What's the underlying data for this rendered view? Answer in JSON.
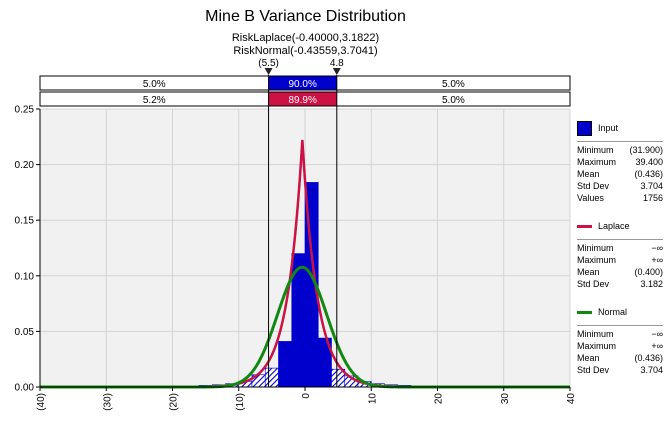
{
  "chart_data": {
    "type": "histogram",
    "title": "Mine B Variance Distribution",
    "subtitles": [
      "RiskLaplace(-0.40000,3.1822)",
      "RiskNormal(-0.43559,3.7041)"
    ],
    "xlim": [
      -40,
      40
    ],
    "ylim": [
      0,
      0.25
    ],
    "x_ticks": [
      -40,
      -30,
      -20,
      -10,
      0,
      10,
      20,
      30,
      40
    ],
    "x_tick_labels": [
      "(40)",
      "(30)",
      "(20)",
      "(10)",
      "0",
      "10",
      "20",
      "30",
      "40"
    ],
    "y_ticks": [
      0,
      0.05,
      0.1,
      0.15,
      0.2,
      0.25
    ],
    "y_tick_labels": [
      "0.00",
      "0.05",
      "0.10",
      "0.15",
      "0.20",
      "0.25"
    ],
    "grid": true,
    "delimiters": {
      "left": {
        "value": -5.5,
        "label": "(5.5)"
      },
      "right": {
        "value": 4.8,
        "label": "4.8"
      }
    },
    "probability_bands": [
      {
        "left": "5.0%",
        "middle": "90.0%",
        "right": "5.0%",
        "color": "#0000cc"
      },
      {
        "left": "5.2%",
        "middle": "89.9%",
        "right": "5.0%",
        "color": "#cc1144"
      }
    ],
    "histogram": {
      "name": "Input",
      "bin_edges": [
        -20,
        -18,
        -16,
        -14,
        -12,
        -10,
        -8,
        -6,
        -4,
        -2,
        0,
        2,
        4,
        6,
        8,
        10,
        12,
        14,
        16,
        18,
        20
      ],
      "densities": [
        0.0005,
        0.001,
        0.0015,
        0.002,
        0.003,
        0.005,
        0.011,
        0.017,
        0.041,
        0.12,
        0.184,
        0.044,
        0.016,
        0.01,
        0.005,
        0.003,
        0.002,
        0.0015,
        0.001,
        0.0005
      ],
      "color": "#0000cc"
    },
    "series": [
      {
        "name": "Laplace",
        "distribution": "laplace",
        "params": [
          -0.4,
          3.1822
        ],
        "color": "#cc1144"
      },
      {
        "name": "Normal",
        "distribution": "normal",
        "params": [
          -0.43559,
          3.7041
        ],
        "color": "#118811"
      }
    ]
  },
  "legend": {
    "input": {
      "label": "Input",
      "color": "#0000cc",
      "stats": [
        {
          "k": "Minimum",
          "v": "(31.900)"
        },
        {
          "k": "Maximum",
          "v": "39.400"
        },
        {
          "k": "Mean",
          "v": "(0.436)"
        },
        {
          "k": "Std Dev",
          "v": "3.704"
        },
        {
          "k": "Values",
          "v": "1756"
        }
      ]
    },
    "laplace": {
      "label": "Laplace",
      "color": "#cc1144",
      "stats": [
        {
          "k": "Minimum",
          "v": "−∞"
        },
        {
          "k": "Maximum",
          "v": "+∞"
        },
        {
          "k": "Mean",
          "v": "(0.400)"
        },
        {
          "k": "Std Dev",
          "v": "3.182"
        }
      ]
    },
    "normal": {
      "label": "Normal",
      "color": "#118811",
      "stats": [
        {
          "k": "Minimum",
          "v": "−∞"
        },
        {
          "k": "Maximum",
          "v": "+∞"
        },
        {
          "k": "Mean",
          "v": "(0.436)"
        },
        {
          "k": "Std Dev",
          "v": "3.704"
        }
      ]
    }
  }
}
